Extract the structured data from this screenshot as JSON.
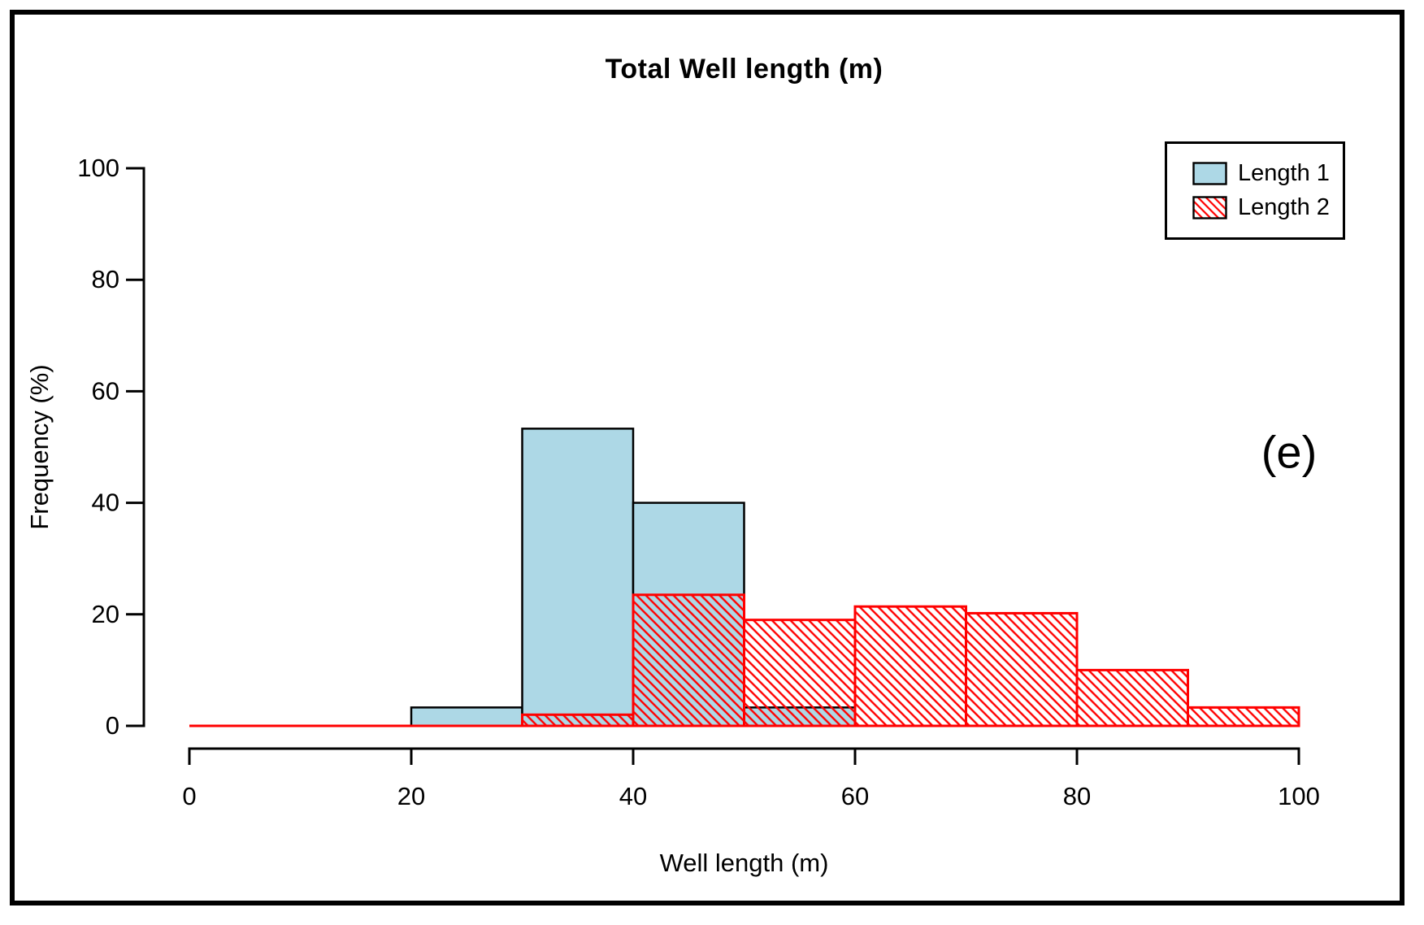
{
  "figure": {
    "title": "Total Well length (m)",
    "annotation": "(e)"
  },
  "chart_data": {
    "type": "bar",
    "subtype": "overlaid-histogram",
    "title": "Total Well length (m)",
    "xlabel": "Well length (m)",
    "ylabel": "Frequency (%)",
    "xlim": [
      0,
      100
    ],
    "ylim": [
      0,
      100
    ],
    "x_ticks": [
      0,
      20,
      40,
      60,
      80,
      100
    ],
    "y_ticks": [
      0,
      20,
      40,
      60,
      80,
      100
    ],
    "bin_width": 10,
    "grid": false,
    "legend_position": "top-right",
    "series": [
      {
        "name": "Length 1",
        "style": "solid",
        "fill": "#ADD8E6",
        "border": "#000000",
        "bins": [
          {
            "start": 20,
            "end": 30,
            "value": 3.3
          },
          {
            "start": 30,
            "end": 40,
            "value": 53.3
          },
          {
            "start": 40,
            "end": 50,
            "value": 40.0
          },
          {
            "start": 50,
            "end": 60,
            "value": 3.3
          }
        ]
      },
      {
        "name": "Length 2",
        "style": "hatched-45deg",
        "fill": "none",
        "border": "#FF0000",
        "bins": [
          {
            "start": 30,
            "end": 40,
            "value": 2.0
          },
          {
            "start": 40,
            "end": 50,
            "value": 23.5
          },
          {
            "start": 50,
            "end": 60,
            "value": 19.0
          },
          {
            "start": 60,
            "end": 70,
            "value": 21.4
          },
          {
            "start": 70,
            "end": 80,
            "value": 20.2
          },
          {
            "start": 80,
            "end": 90,
            "value": 10.0
          },
          {
            "start": 90,
            "end": 100,
            "value": 3.3
          }
        ]
      }
    ]
  },
  "legend": {
    "entries": [
      {
        "label": "Length 1",
        "swatch": "solid-blue"
      },
      {
        "label": "Length 2",
        "swatch": "red-hatched"
      }
    ]
  },
  "colors": {
    "length1_fill": "#ADD8E6",
    "length2_hatch": "#FF0000",
    "axis": "#000000",
    "background": "#FFFFFF"
  }
}
